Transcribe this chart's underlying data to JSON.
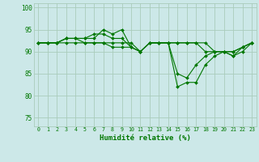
{
  "xlabel": "Humidité relative (%)",
  "background_color": "#cce8e8",
  "grid_color": "#aaccbb",
  "line_color": "#007700",
  "xlim": [
    -0.5,
    23.5
  ],
  "ylim": [
    73,
    101
  ],
  "yticks": [
    75,
    80,
    85,
    90,
    95,
    100
  ],
  "xticks": [
    0,
    1,
    2,
    3,
    4,
    5,
    6,
    7,
    8,
    9,
    10,
    11,
    12,
    13,
    14,
    15,
    16,
    17,
    18,
    19,
    20,
    21,
    22,
    23
  ],
  "series": [
    [
      92,
      92,
      92,
      93,
      93,
      93,
      93,
      95,
      94,
      95,
      91,
      90,
      92,
      92,
      92,
      82,
      83,
      83,
      87,
      89,
      90,
      89,
      90,
      92
    ],
    [
      92,
      92,
      92,
      93,
      93,
      93,
      94,
      94,
      93,
      93,
      91,
      90,
      92,
      92,
      92,
      85,
      84,
      87,
      89,
      90,
      90,
      89,
      91,
      92
    ],
    [
      92,
      92,
      92,
      93,
      93,
      92,
      92,
      92,
      92,
      92,
      92,
      90,
      92,
      92,
      92,
      92,
      92,
      92,
      90,
      90,
      90,
      90,
      91,
      92
    ],
    [
      92,
      92,
      92,
      92,
      92,
      92,
      92,
      92,
      91,
      91,
      91,
      90,
      92,
      92,
      92,
      92,
      92,
      92,
      92,
      90,
      90,
      90,
      91,
      92
    ]
  ]
}
